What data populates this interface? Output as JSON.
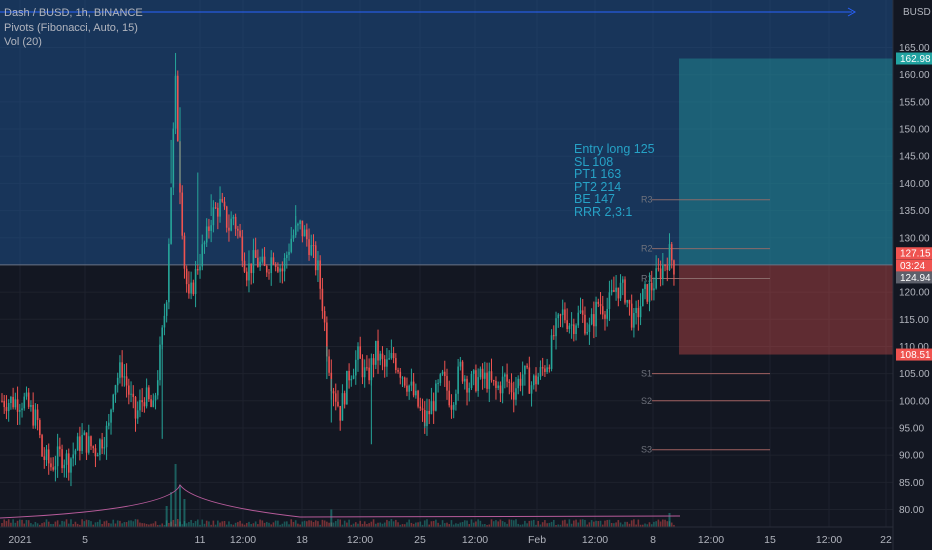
{
  "header": {
    "symbol_line": "Dash / BUSD, 1h, BINANCE",
    "indicator_pivots": "Pivots (Fibonacci, Auto, 15)",
    "indicator_volume": "Vol (20)"
  },
  "price_axis": {
    "currency": "BUSD",
    "ticks": [
      "165.00",
      "160.00",
      "155.00",
      "150.00",
      "145.00",
      "140.00",
      "135.00",
      "130.00",
      "125.00",
      "120.00",
      "115.00",
      "110.00",
      "105.00",
      "100.00",
      "95.00",
      "90.00",
      "85.00",
      "80.00"
    ],
    "tick_values": [
      165,
      160,
      155,
      150,
      145,
      140,
      135,
      130,
      125,
      120,
      115,
      110,
      105,
      100,
      95,
      90,
      85,
      80
    ],
    "badges": [
      {
        "label": "162.98",
        "value": 162.98,
        "color": "#22a3a1"
      },
      {
        "label": "127.15",
        "value": 127.15,
        "color": "#ef5350"
      },
      {
        "label": "03:24",
        "value": 124.9,
        "color": "#ef5350"
      },
      {
        "label": "124.94",
        "value": 122.7,
        "color": "#5d606b"
      },
      {
        "label": "108.51",
        "value": 108.51,
        "color": "#ef5350"
      }
    ]
  },
  "time_axis": {
    "ticks": [
      "2021",
      "5",
      "11",
      "12:00",
      "18",
      "12:00",
      "25",
      "12:00",
      "Feb",
      "12:00",
      "8",
      "12:00",
      "15",
      "12:00",
      "22"
    ]
  },
  "position": {
    "entry": 125,
    "stop": 108.51,
    "target": 162.98,
    "profit_color": "#22a3a1",
    "loss_color": "#ef5350"
  },
  "pivot_levels": [
    {
      "label": "R3",
      "value": 137
    },
    {
      "label": "R2",
      "value": 128
    },
    {
      "label": "R1",
      "value": 122.5
    },
    {
      "label": "S1",
      "value": 105
    },
    {
      "label": "S2",
      "value": 100
    },
    {
      "label": "S3",
      "value": 91
    }
  ],
  "annotation": {
    "lines": [
      "Entry long 125",
      "SL 108",
      "PT1 163",
      "PT2 214",
      "BE 147",
      "RRR 2,3:1"
    ]
  },
  "chart_data": {
    "type": "candlestick",
    "symbol": "Dash / BUSD",
    "interval": "1h",
    "exchange": "BINANCE",
    "up_color": "#26a69a",
    "down_color": "#ef5350",
    "ylim": [
      78,
      173
    ],
    "close_path": [
      [
        0,
        100
      ],
      [
        3,
        100
      ],
      [
        5,
        100
      ],
      [
        8,
        96
      ],
      [
        9,
        90
      ],
      [
        11,
        88
      ],
      [
        13,
        90
      ],
      [
        15,
        89
      ],
      [
        18,
        93
      ],
      [
        21,
        91
      ],
      [
        24,
        95
      ],
      [
        25,
        103
      ],
      [
        27,
        106
      ],
      [
        29,
        100
      ],
      [
        30,
        97
      ],
      [
        32,
        101
      ],
      [
        34,
        98
      ],
      [
        36,
        112
      ],
      [
        37,
        120
      ],
      [
        38,
        140
      ],
      [
        39,
        158
      ],
      [
        40,
        140
      ],
      [
        41,
        125
      ],
      [
        42,
        118
      ],
      [
        44,
        125
      ],
      [
        46,
        130
      ],
      [
        47,
        134
      ],
      [
        49,
        136
      ],
      [
        51,
        132
      ],
      [
        52,
        134
      ],
      [
        54,
        128
      ],
      [
        55,
        124
      ],
      [
        57,
        126
      ],
      [
        59,
        124
      ],
      [
        61,
        127
      ],
      [
        63,
        124
      ],
      [
        65,
        130
      ],
      [
        67,
        132
      ],
      [
        69,
        129
      ],
      [
        71,
        124
      ],
      [
        72,
        118
      ],
      [
        73,
        110
      ],
      [
        74,
        104
      ],
      [
        76,
        98
      ],
      [
        78,
        105
      ],
      [
        80,
        108
      ],
      [
        82,
        104
      ],
      [
        84,
        109
      ],
      [
        86,
        106
      ],
      [
        88,
        108
      ],
      [
        90,
        105
      ],
      [
        92,
        102
      ],
      [
        94,
        98
      ],
      [
        95,
        96
      ],
      [
        97,
        100
      ],
      [
        99,
        104
      ],
      [
        101,
        100
      ],
      [
        103,
        106
      ],
      [
        105,
        103
      ],
      [
        107,
        104
      ],
      [
        109,
        104
      ],
      [
        111,
        102
      ],
      [
        113,
        104
      ],
      [
        115,
        102
      ],
      [
        117,
        105
      ],
      [
        119,
        103
      ],
      [
        121,
        105
      ],
      [
        123,
        108
      ],
      [
        124,
        112
      ],
      [
        126,
        116
      ],
      [
        128,
        114
      ],
      [
        130,
        116
      ],
      [
        132,
        113
      ],
      [
        134,
        118
      ],
      [
        136,
        117
      ],
      [
        138,
        121
      ],
      [
        140,
        120
      ],
      [
        142,
        114
      ],
      [
        144,
        119
      ],
      [
        146,
        121
      ],
      [
        148,
        124
      ],
      [
        150,
        127
      ],
      [
        151,
        125
      ]
    ],
    "spikes": [
      [
        39,
        164
      ],
      [
        40,
        154
      ],
      [
        38,
        148
      ],
      [
        44,
        142
      ],
      [
        47,
        138
      ],
      [
        66,
        136
      ],
      [
        36,
        93
      ],
      [
        73,
        104
      ],
      [
        74,
        96
      ],
      [
        83,
        92
      ],
      [
        95,
        95
      ]
    ],
    "volume_bars": [
      [
        38,
        5
      ],
      [
        39,
        9
      ],
      [
        40,
        6
      ],
      [
        41,
        4
      ],
      [
        37,
        3
      ],
      [
        74,
        2.5
      ],
      [
        150,
        2
      ]
    ]
  }
}
